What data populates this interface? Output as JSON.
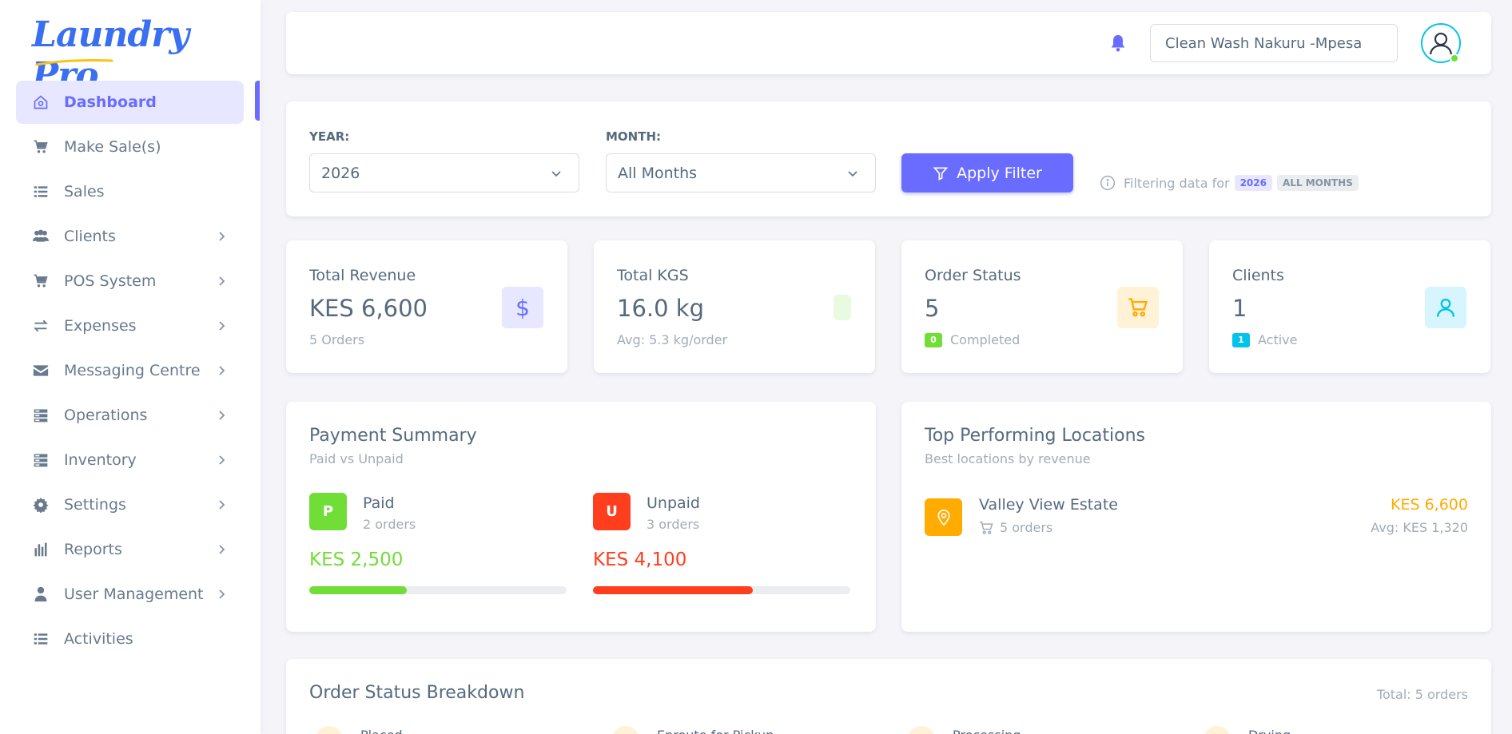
{
  "brand": {
    "name": "Laundry Pro"
  },
  "sidebar": {
    "items": [
      {
        "label": "Dashboard",
        "icon": "home-icon",
        "active": true,
        "has_sub": false
      },
      {
        "label": "Make Sale(s)",
        "icon": "cart-icon",
        "has_sub": false
      },
      {
        "label": "Sales",
        "icon": "list-icon",
        "has_sub": false
      },
      {
        "label": "Clients",
        "icon": "users-icon",
        "has_sub": true
      },
      {
        "label": "POS System",
        "icon": "cart-icon",
        "has_sub": true
      },
      {
        "label": "Expenses",
        "icon": "exchange-icon",
        "has_sub": true
      },
      {
        "label": "Messaging Centre",
        "icon": "envelope-icon",
        "has_sub": true
      },
      {
        "label": "Operations",
        "icon": "server-icon",
        "has_sub": true
      },
      {
        "label": "Inventory",
        "icon": "server-icon",
        "has_sub": true
      },
      {
        "label": "Settings",
        "icon": "gear-icon",
        "has_sub": true
      },
      {
        "label": "Reports",
        "icon": "bar-chart-icon",
        "has_sub": true
      },
      {
        "label": "User Management",
        "icon": "user-icon",
        "has_sub": true
      },
      {
        "label": "Activities",
        "icon": "list-icon",
        "has_sub": false
      }
    ]
  },
  "topbar": {
    "location": "Clean Wash Nakuru -Mpesa"
  },
  "filter": {
    "year_label": "YEAR:",
    "year_value": "2026",
    "month_label": "MONTH:",
    "month_value": "All Months",
    "apply_label": "Apply Filter",
    "info_text": "Filtering data for",
    "info_year": "2026",
    "info_month": "ALL MONTHS"
  },
  "stats": {
    "revenue": {
      "title": "Total Revenue",
      "value": "KES 6,600",
      "sub": "5 Orders",
      "icon": "$"
    },
    "kgs": {
      "title": "Total KGS",
      "value": "16.0 kg",
      "sub": "Avg: 5.3 kg/order"
    },
    "orders": {
      "title": "Order Status",
      "value": "5",
      "badge": "0",
      "sub": "Completed"
    },
    "clients": {
      "title": "Clients",
      "value": "1",
      "badge": "1",
      "sub": "Active"
    }
  },
  "payment": {
    "title": "Payment Summary",
    "subtitle": "Paid vs Unpaid",
    "paid": {
      "badge": "P",
      "name": "Paid",
      "count": "2 orders",
      "amount": "KES 2,500",
      "fraction": 0.379,
      "color": "#71dd37"
    },
    "unpaid": {
      "badge": "U",
      "name": "Unpaid",
      "count": "3 orders",
      "amount": "KES 4,100",
      "fraction": 0.621,
      "color": "#ff3e1d"
    }
  },
  "locations": {
    "title": "Top Performing Locations",
    "subtitle": "Best locations by revenue",
    "items": [
      {
        "name": "Valley View Estate",
        "orders": "5 orders",
        "amount": "KES 6,600",
        "avg": "Avg: KES 1,320"
      }
    ]
  },
  "order_status": {
    "title": "Order Status Breakdown",
    "total": "Total: 5 orders",
    "items": [
      {
        "label": "Placed"
      },
      {
        "label": "Enroute for Pickup"
      },
      {
        "label": "Processing"
      },
      {
        "label": "Drying"
      }
    ]
  },
  "colors": {
    "primary": "#696cff",
    "success": "#71dd37",
    "danger": "#ff3e1d",
    "warning": "#ffab00",
    "info": "#03c3ec"
  }
}
